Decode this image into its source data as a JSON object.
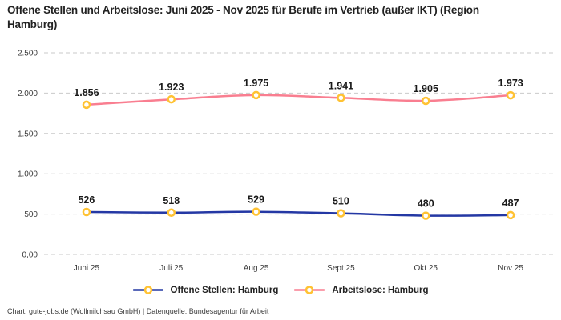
{
  "title": "Offene Stellen und Arbeitslose: Juni 2025 - Nov 2025 für Berufe im Vertrieb (außer IKT) (Region Hamburg)",
  "footer": "Chart: gute-jobs.de (Wollmilchsau GmbH) | Datenquelle: Bundesagentur für Arbeit",
  "chart_data": {
    "type": "line",
    "title": "Offene Stellen und Arbeitslose: Juni 2025 - Nov 2025 für Berufe im Vertrieb (außer IKT) (Region Hamburg)",
    "categories": [
      "Juni 25",
      "Juli 25",
      "Aug 25",
      "Sept 25",
      "Okt 25",
      "Nov 25"
    ],
    "series": [
      {
        "name": "Offene Stellen: Hamburg",
        "color": "#2438a4",
        "values": [
          526,
          518,
          529,
          510,
          480,
          487
        ],
        "labels": [
          "526",
          "518",
          "529",
          "510",
          "480",
          "487"
        ]
      },
      {
        "name": "Arbeitslose: Hamburg",
        "color": "#f97e90",
        "values": [
          1856,
          1923,
          1975,
          1941,
          1905,
          1973
        ],
        "labels": [
          "1.856",
          "1.923",
          "1.975",
          "1.941",
          "1.905",
          "1.973"
        ]
      }
    ],
    "marker": {
      "fill": "#ffffff",
      "stroke": "#ffc233"
    },
    "y_ticks": [
      {
        "value": 0,
        "label": "0,00"
      },
      {
        "value": 500,
        "label": "500"
      },
      {
        "value": 1000,
        "label": "1.000"
      },
      {
        "value": 1500,
        "label": "1.500"
      },
      {
        "value": 2000,
        "label": "2.000"
      },
      {
        "value": 2500,
        "label": "2.500"
      }
    ],
    "ylim": [
      0,
      2500
    ],
    "grid": "horizontal-dashed",
    "grid_color": "#c9c9c9",
    "legend_position": "bottom",
    "xlabel": "",
    "ylabel": ""
  }
}
